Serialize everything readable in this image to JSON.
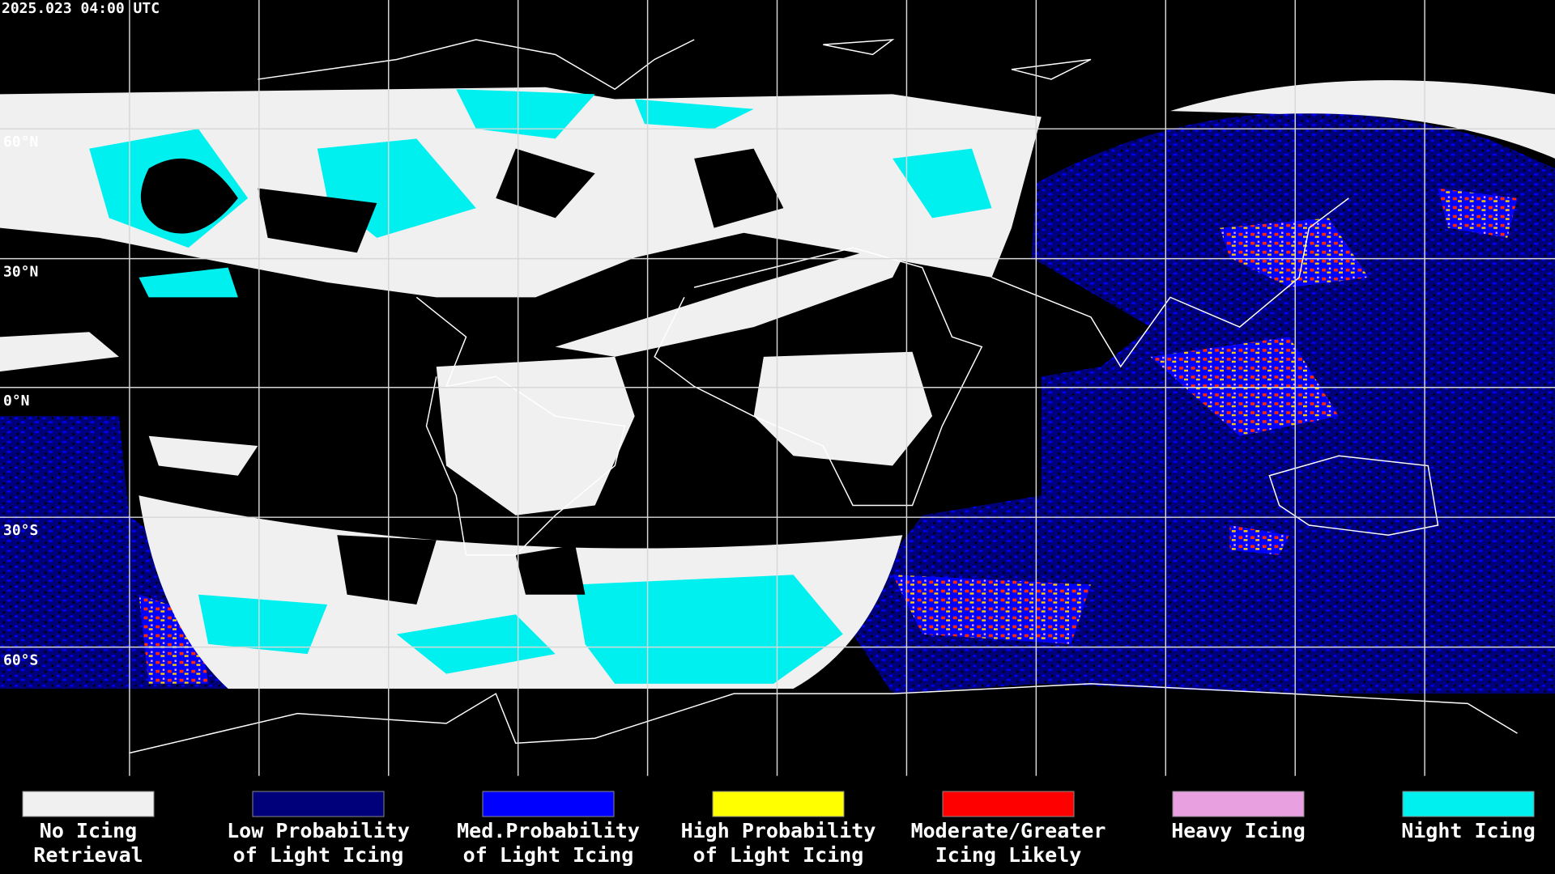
{
  "header": {
    "timestamp": "2025.023 04:00 UTC"
  },
  "map": {
    "latitude_labels": [
      "60°N",
      "30°N",
      "0°N",
      "30°S",
      "60°S"
    ]
  },
  "legend": {
    "items": [
      {
        "label_lines": [
          "No Icing",
          "Retrieval"
        ],
        "color": "#f0f0f0"
      },
      {
        "label_lines": [
          "Low Probability",
          "of Light Icing"
        ],
        "color": "#00007a"
      },
      {
        "label_lines": [
          "Med.Probability",
          "of Light Icing"
        ],
        "color": "#0000ff"
      },
      {
        "label_lines": [
          "High Probability",
          "of Light Icing"
        ],
        "color": "#ffff00"
      },
      {
        "label_lines": [
          "Moderate/Greater",
          "Icing Likely"
        ],
        "color": "#ff0000"
      },
      {
        "label_lines": [
          "Heavy Icing"
        ],
        "color": "#e8a0e0"
      },
      {
        "label_lines": [
          "Night Icing"
        ],
        "color": "#00f0f0"
      }
    ]
  }
}
